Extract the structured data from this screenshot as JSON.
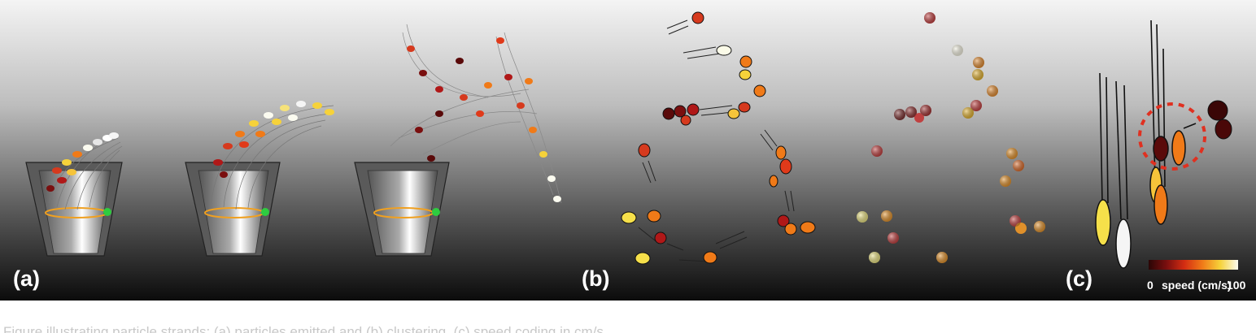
{
  "panel_labels": {
    "a": "(a)",
    "b": "(b)",
    "c": "(c)"
  },
  "legend": {
    "min_label": "0",
    "title": "speed (cm/s)",
    "max_label": "100",
    "gradient_colors": [
      "#2a0606",
      "#7a0f0f",
      "#d42d12",
      "#f07a18",
      "#f6d23a",
      "#fbfbf0"
    ]
  },
  "caption": "Figure illustrating particle strands: (a) particles emitted and (b) clustering, (c) speed coding in cm/s."
}
